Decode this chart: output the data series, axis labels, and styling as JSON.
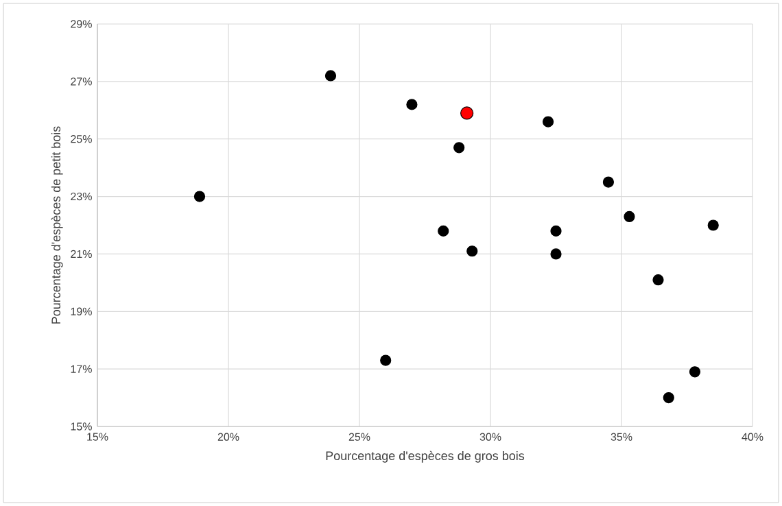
{
  "chart_data": {
    "type": "scatter",
    "xlabel": "Pourcentage d'espèces de gros bois",
    "ylabel": "Pourcentage d'espèces de petit bois",
    "series": [
      {
        "color": "#000000",
        "x": [
          23.9,
          27.0,
          18.9,
          28.8,
          32.2,
          34.5,
          28.2,
          29.3,
          32.5,
          32.5,
          35.3,
          38.5,
          36.4,
          37.8,
          36.8,
          26.0
        ],
        "values": [
          27.2,
          26.2,
          23.0,
          24.7,
          25.6,
          23.5,
          21.8,
          21.1,
          21.8,
          21.0,
          22.3,
          22.0,
          20.1,
          16.9,
          16.0,
          17.3
        ]
      },
      {
        "color": "#ff0000",
        "x": [
          29.1
        ],
        "values": [
          25.9
        ]
      }
    ],
    "xlim": [
      15,
      40
    ],
    "xticks": [
      {
        "value": 15,
        "label": "15%"
      },
      {
        "value": 20,
        "label": "20%"
      },
      {
        "value": 25,
        "label": "25%"
      },
      {
        "value": 30,
        "label": "30%"
      },
      {
        "value": 35,
        "label": "35%"
      },
      {
        "value": 40,
        "label": "40%"
      }
    ],
    "ylim": [
      15,
      29
    ],
    "yticks": [
      {
        "value": 15,
        "label": "15%"
      },
      {
        "value": 17,
        "label": "17%"
      },
      {
        "value": 19,
        "label": "19%"
      },
      {
        "value": 21,
        "label": "21%"
      },
      {
        "value": 23,
        "label": "23%"
      },
      {
        "value": 25,
        "label": "25%"
      },
      {
        "value": 27,
        "label": "27%"
      },
      {
        "value": 29,
        "label": "29%"
      }
    ],
    "grid": true,
    "marker": "circle"
  }
}
